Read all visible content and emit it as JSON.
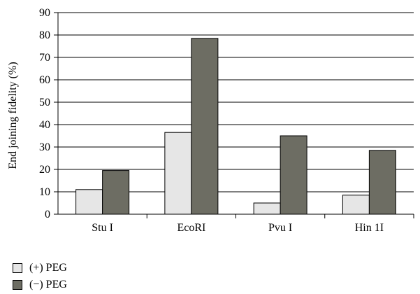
{
  "chart_data": {
    "type": "bar",
    "title": "",
    "xlabel": "",
    "ylabel": "End joining fidelity (%)",
    "ylim": [
      0,
      90
    ],
    "yticks": [
      0,
      10,
      20,
      30,
      40,
      50,
      60,
      70,
      80,
      90
    ],
    "grid": "horizontal",
    "legend_position": "bottom-left",
    "categories": [
      "Stu I",
      "EcoRI",
      "Pvu I",
      "Hin 1I"
    ],
    "series": [
      {
        "name": "(+) PEG",
        "color": "#e6e6e6",
        "values": [
          11,
          36.5,
          5,
          8.5
        ]
      },
      {
        "name": "(−) PEG",
        "color": "#6d6d63",
        "values": [
          19.5,
          78.5,
          35,
          28.5
        ]
      }
    ]
  }
}
